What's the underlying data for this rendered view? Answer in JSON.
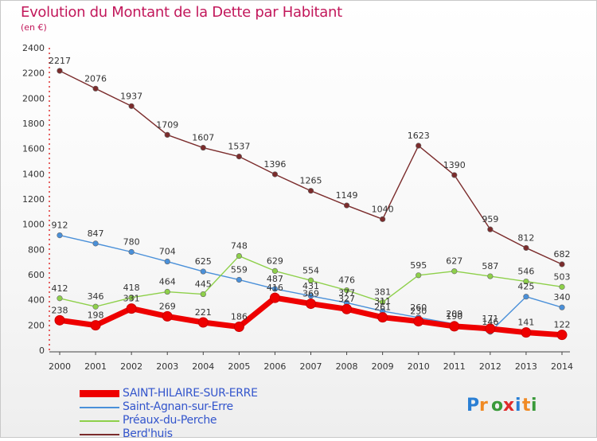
{
  "title": "Evolution du Montant de la Dette par Habitant",
  "subtitle": "(en €)",
  "logo_text": "Proxiti",
  "chart_data": {
    "type": "line",
    "title": "Evolution du Montant de la Dette par Habitant",
    "subtitle": "(en €)",
    "xlabel": "",
    "ylabel": "",
    "x": [
      "2000",
      "2001",
      "2002",
      "2003",
      "2004",
      "2005",
      "2006",
      "2007",
      "2008",
      "2009",
      "2010",
      "2011",
      "2012",
      "2013",
      "2014"
    ],
    "ylim": [
      0,
      2400
    ],
    "yticks": [
      0,
      200,
      400,
      600,
      800,
      1000,
      1200,
      1400,
      1600,
      1800,
      2000,
      2200,
      2400
    ],
    "grid": false,
    "legend": "bottom-left",
    "series": [
      {
        "name": "Berd'huis",
        "color": "#7b2c2c",
        "values": [
          2217,
          2076,
          1937,
          1709,
          1607,
          1537,
          1396,
          1265,
          1149,
          1040,
          1623,
          1390,
          959,
          812,
          682
        ],
        "labels": [
          "2217",
          "2076",
          "1937",
          "1709",
          "1607",
          "1537",
          "1396",
          "1265",
          "1149",
          "1040",
          "1623",
          "1390",
          "959",
          "812",
          "682"
        ]
      },
      {
        "name": "Saint-Agnan-sur-Erre",
        "color": "#4a90d9",
        "values": [
          912,
          847,
          780,
          704,
          625,
          559,
          487,
          431,
          377,
          311,
          260,
          209,
          146,
          425,
          340
        ],
        "labels": [
          "912",
          "847",
          "780",
          "704",
          "625",
          "559",
          "487",
          "431",
          "377",
          "311",
          "260",
          "209",
          "146",
          "425",
          "340"
        ]
      },
      {
        "name": "Préaux-du-Perche",
        "color": "#8ed04a",
        "values": [
          412,
          346,
          418,
          464,
          445,
          748,
          629,
          554,
          476,
          381,
          595,
          627,
          587,
          546,
          503
        ],
        "labels": [
          "412",
          "346",
          "418",
          "464",
          "445",
          "748",
          "629",
          "554",
          "476",
          "381",
          "595",
          "627",
          "587",
          "546",
          "503"
        ]
      },
      {
        "name": "SAINT-HILAIRE-SUR-ERRE",
        "color": "#ee0000",
        "values": [
          238,
          198,
          331,
          269,
          221,
          186,
          416,
          369,
          327,
          261,
          230,
          190,
          171,
          141,
          122
        ],
        "labels": [
          "238",
          "198",
          "331",
          "269",
          "221",
          "186",
          "416",
          "369",
          "327",
          "261",
          "230",
          "190",
          "171",
          "141",
          "122"
        ]
      }
    ],
    "legend_entries": [
      "SAINT-HILAIRE-SUR-ERRE",
      "Saint-Agnan-sur-Erre",
      "Préaux-du-Perche",
      "Berd'huis"
    ]
  }
}
